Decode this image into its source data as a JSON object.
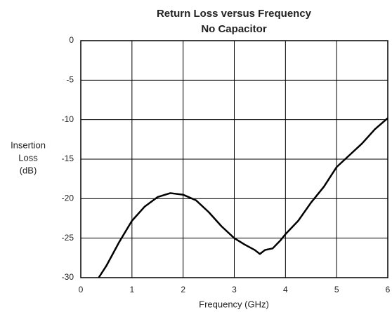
{
  "chart_data": {
    "type": "line",
    "title": "Return Loss versus Frequency",
    "subtitle": "No Capacitor",
    "x_label": "Frequency (GHz)",
    "y_label": [
      "Insertion",
      "Loss",
      "(dB)"
    ],
    "x": [
      0.35,
      0.5,
      0.75,
      1.0,
      1.25,
      1.5,
      1.75,
      2.0,
      2.25,
      2.5,
      2.75,
      3.0,
      3.2,
      3.4,
      3.5,
      3.6,
      3.75,
      3.9,
      4.0,
      4.25,
      4.5,
      4.75,
      5.0,
      5.25,
      5.5,
      5.75,
      6.0
    ],
    "series": [
      {
        "name": "Return Loss",
        "color": "#000000",
        "values": [
          -30,
          -28.5,
          -25.5,
          -22.8,
          -21,
          -19.8,
          -19.3,
          -19.5,
          -20.2,
          -21.7,
          -23.5,
          -25,
          -25.8,
          -26.5,
          -27,
          -26.5,
          -26.3,
          -25.3,
          -24.5,
          -22.8,
          -20.5,
          -18.5,
          -16,
          -14.5,
          -13,
          -11.2,
          -9.8
        ]
      }
    ],
    "xlim": [
      0,
      6
    ],
    "xticks": [
      0,
      1,
      2,
      3,
      4,
      5,
      6
    ],
    "ylim": [
      -30,
      0
    ],
    "yticks": [
      -30,
      -25,
      -20,
      -15,
      -10,
      -5,
      0
    ],
    "grid": true
  }
}
